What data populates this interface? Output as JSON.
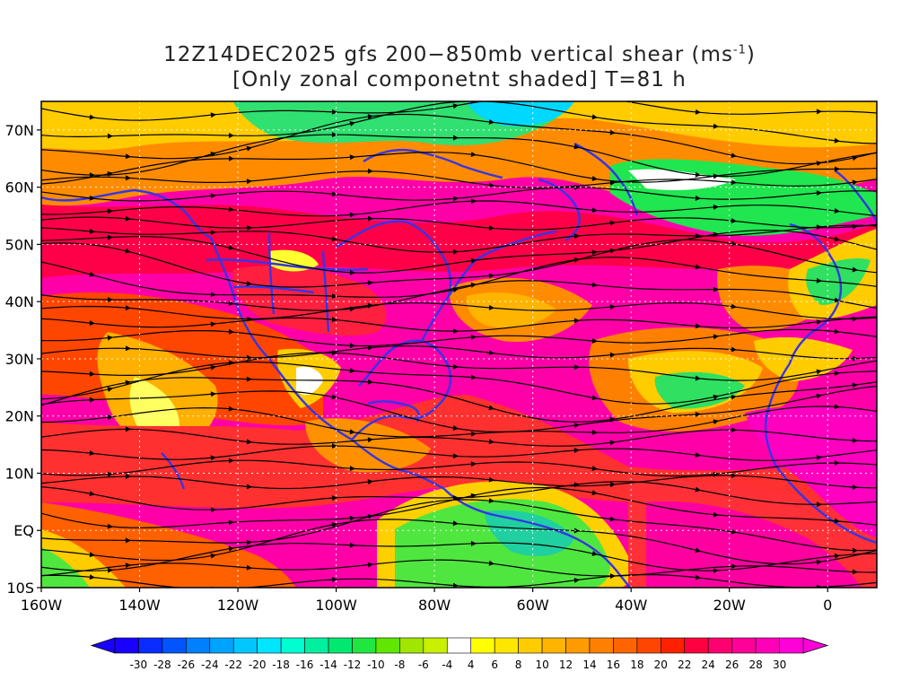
{
  "title": {
    "line1_prefix": "12Z14DEC2025 gfs 200−850mb vertical shear (ms",
    "line1_exp": "-1",
    "line1_suffix": ")",
    "line2": "[Only zonal componetnt shaded] T=81 h"
  },
  "map": {
    "lon_range": [
      -160,
      10
    ],
    "lat_range": [
      -10,
      75
    ],
    "lat_ticks": [
      {
        "value": 70,
        "label": "70N"
      },
      {
        "value": 60,
        "label": "60N"
      },
      {
        "value": 50,
        "label": "50N"
      },
      {
        "value": 40,
        "label": "40N"
      },
      {
        "value": 30,
        "label": "30N"
      },
      {
        "value": 20,
        "label": "20N"
      },
      {
        "value": 10,
        "label": "10N"
      },
      {
        "value": 0,
        "label": "EQ"
      },
      {
        "value": -10,
        "label": "10S"
      }
    ],
    "lon_ticks": [
      {
        "value": -160,
        "label": "160W"
      },
      {
        "value": -140,
        "label": "140W"
      },
      {
        "value": -120,
        "label": "120W"
      },
      {
        "value": -100,
        "label": "100W"
      },
      {
        "value": -80,
        "label": "80W"
      },
      {
        "value": -60,
        "label": "60W"
      },
      {
        "value": -40,
        "label": "40W"
      },
      {
        "value": -20,
        "label": "20W"
      },
      {
        "value": 0,
        "label": "0"
      }
    ],
    "coastline_color": "#3535e6",
    "streamline_color": "#000000"
  },
  "colorbar": {
    "labels": [
      "-30",
      "-28",
      "-26",
      "-24",
      "-22",
      "-20",
      "-18",
      "-16",
      "-14",
      "-12",
      "-10",
      "-8",
      "-6",
      "-4",
      "4",
      "6",
      "8",
      "10",
      "12",
      "14",
      "16",
      "18",
      "20",
      "22",
      "24",
      "26",
      "28",
      "30"
    ],
    "colors": [
      "#1a00ff",
      "#0a2cff",
      "#0055ff",
      "#0080ff",
      "#00a4ff",
      "#00c8ff",
      "#00e6ff",
      "#00ffd0",
      "#00f0a0",
      "#00e870",
      "#20e640",
      "#60e600",
      "#a0e600",
      "#c8f000",
      "#ffffff",
      "#ffff00",
      "#ffe600",
      "#ffcc00",
      "#ffb400",
      "#ff9b00",
      "#ff8000",
      "#ff6400",
      "#ff4600",
      "#ff2000",
      "#ff0040",
      "#ff0070",
      "#ff0098",
      "#ff00b8",
      "#ff00d8"
    ]
  }
}
